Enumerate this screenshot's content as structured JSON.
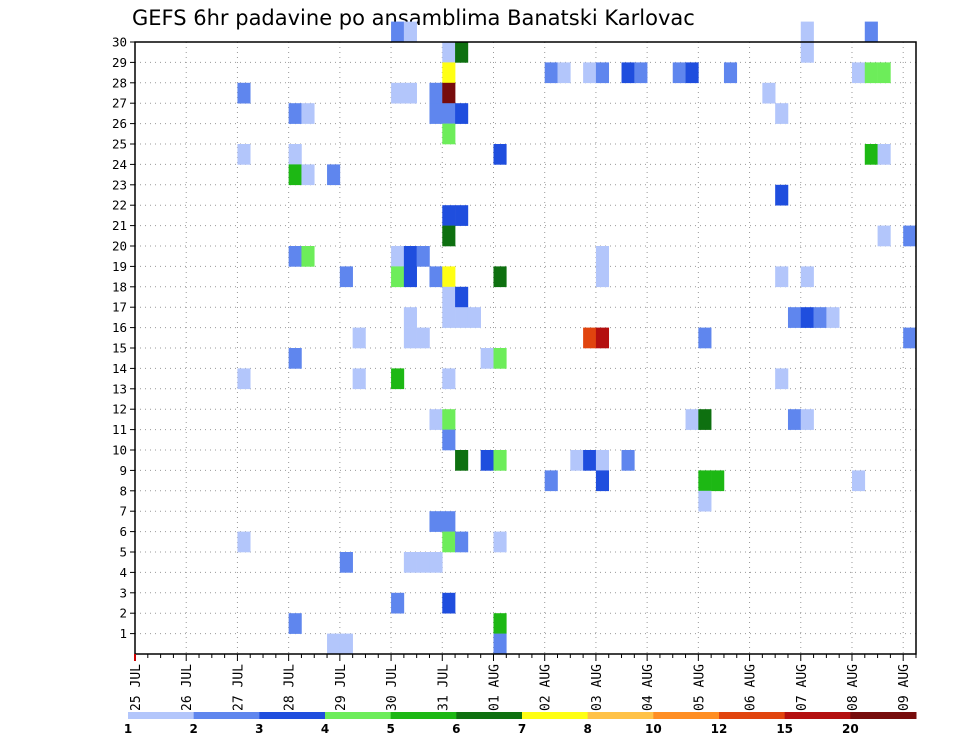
{
  "chart_data": {
    "type": "heatmap",
    "title": "GEFS 6hr padavine po ansamblima Banatski Karlovac",
    "x_tick_labels": [
      "25 JUL",
      "26 JUL",
      "27 JUL",
      "28 JUL",
      "29 JUL",
      "30 JUL",
      "31 JUL",
      "01 AUG",
      "02 AUG",
      "03 AUG",
      "04 AUG",
      "05 AUG",
      "06 AUG",
      "07 AUG",
      "08 AUG",
      "09 AUG"
    ],
    "y_tick_labels": [
      "1",
      "2",
      "3",
      "4",
      "5",
      "6",
      "7",
      "8",
      "9",
      "10",
      "11",
      "12",
      "13",
      "14",
      "15",
      "16",
      "17",
      "18",
      "19",
      "20",
      "21",
      "22",
      "23",
      "24",
      "25",
      "26",
      "27",
      "28",
      "29",
      "30"
    ],
    "x_range_steps": [
      0,
      61
    ],
    "y_range": [
      0,
      30
    ],
    "grid": true,
    "legend_position": "bottom",
    "legend": {
      "labels": [
        "1",
        "2",
        "3",
        "4",
        "5",
        "6",
        "7",
        "8",
        "10",
        "12",
        "15",
        "20"
      ],
      "colors": [
        "#b3c6fb",
        "#5f86ee",
        "#1f4ede",
        "#6ded5a",
        "#1db814",
        "#0e7010",
        "#ffff14",
        "#ffc248",
        "#ff8e23",
        "#e1440e",
        "#b40f0f",
        "#770c0c"
      ]
    },
    "cell_units": "member, 6-hour step index from 25 JUL 00Z, precipitation class (1-12)",
    "cells": [
      [
        30,
        20,
        2
      ],
      [
        30,
        21,
        1
      ],
      [
        30,
        52,
        1
      ],
      [
        30,
        57,
        2
      ],
      [
        29,
        24,
        1
      ],
      [
        29,
        25,
        6
      ],
      [
        29,
        52,
        1
      ],
      [
        28,
        24,
        7
      ],
      [
        28,
        32,
        2
      ],
      [
        28,
        33,
        1
      ],
      [
        28,
        35,
        1
      ],
      [
        28,
        36,
        2
      ],
      [
        28,
        38,
        3
      ],
      [
        28,
        39,
        2
      ],
      [
        28,
        42,
        2
      ],
      [
        28,
        43,
        3
      ],
      [
        28,
        46,
        2
      ],
      [
        28,
        56,
        1
      ],
      [
        28,
        57,
        4
      ],
      [
        28,
        58,
        4
      ],
      [
        27,
        8,
        2
      ],
      [
        27,
        20,
        1
      ],
      [
        27,
        21,
        1
      ],
      [
        27,
        23,
        2
      ],
      [
        27,
        24,
        12
      ],
      [
        27,
        49,
        1
      ],
      [
        26,
        12,
        2
      ],
      [
        26,
        13,
        1
      ],
      [
        26,
        23,
        2
      ],
      [
        26,
        24,
        2
      ],
      [
        26,
        25,
        3
      ],
      [
        26,
        50,
        1
      ],
      [
        25,
        24,
        4
      ],
      [
        24,
        8,
        1
      ],
      [
        24,
        12,
        1
      ],
      [
        24,
        28,
        3
      ],
      [
        24,
        57,
        5
      ],
      [
        24,
        58,
        1
      ],
      [
        23,
        12,
        5
      ],
      [
        23,
        13,
        1
      ],
      [
        23,
        15,
        2
      ],
      [
        22,
        50,
        3
      ],
      [
        21,
        24,
        3
      ],
      [
        21,
        25,
        3
      ],
      [
        20,
        24,
        6
      ],
      [
        20,
        58,
        1
      ],
      [
        20,
        60,
        2
      ],
      [
        19,
        12,
        2
      ],
      [
        19,
        13,
        4
      ],
      [
        19,
        20,
        1
      ],
      [
        19,
        21,
        3
      ],
      [
        19,
        22,
        2
      ],
      [
        19,
        36,
        1
      ],
      [
        18,
        16,
        2
      ],
      [
        18,
        20,
        4
      ],
      [
        18,
        21,
        3
      ],
      [
        18,
        23,
        2
      ],
      [
        18,
        24,
        7
      ],
      [
        18,
        28,
        6
      ],
      [
        18,
        36,
        1
      ],
      [
        18,
        50,
        1
      ],
      [
        18,
        52,
        1
      ],
      [
        17,
        24,
        1
      ],
      [
        17,
        25,
        3
      ],
      [
        16,
        21,
        1
      ],
      [
        16,
        24,
        1
      ],
      [
        16,
        25,
        1
      ],
      [
        16,
        26,
        1
      ],
      [
        16,
        51,
        2
      ],
      [
        16,
        52,
        3
      ],
      [
        16,
        53,
        2
      ],
      [
        16,
        54,
        1
      ],
      [
        15,
        17,
        1
      ],
      [
        15,
        21,
        1
      ],
      [
        15,
        22,
        1
      ],
      [
        15,
        35,
        10
      ],
      [
        15,
        36,
        11
      ],
      [
        15,
        44,
        2
      ],
      [
        15,
        60,
        2
      ],
      [
        14,
        12,
        2
      ],
      [
        14,
        27,
        1
      ],
      [
        14,
        28,
        4
      ],
      [
        13,
        8,
        1
      ],
      [
        13,
        17,
        1
      ],
      [
        13,
        20,
        5
      ],
      [
        13,
        24,
        1
      ],
      [
        13,
        50,
        1
      ],
      [
        11,
        23,
        1
      ],
      [
        11,
        24,
        4
      ],
      [
        11,
        43,
        1
      ],
      [
        11,
        44,
        6
      ],
      [
        11,
        51,
        2
      ],
      [
        11,
        52,
        1
      ],
      [
        10,
        24,
        2
      ],
      [
        9,
        25,
        6
      ],
      [
        9,
        27,
        3
      ],
      [
        9,
        28,
        4
      ],
      [
        9,
        34,
        1
      ],
      [
        9,
        35,
        3
      ],
      [
        9,
        36,
        1
      ],
      [
        9,
        38,
        2
      ],
      [
        8,
        32,
        2
      ],
      [
        8,
        36,
        3
      ],
      [
        8,
        44,
        5
      ],
      [
        8,
        45,
        5
      ],
      [
        8,
        56,
        1
      ],
      [
        7,
        44,
        1
      ],
      [
        6,
        23,
        2
      ],
      [
        6,
        24,
        2
      ],
      [
        5,
        8,
        1
      ],
      [
        5,
        24,
        4
      ],
      [
        5,
        25,
        2
      ],
      [
        5,
        28,
        1
      ],
      [
        4,
        16,
        2
      ],
      [
        4,
        21,
        1
      ],
      [
        4,
        22,
        1
      ],
      [
        4,
        23,
        1
      ],
      [
        2,
        20,
        2
      ],
      [
        2,
        24,
        3
      ],
      [
        1,
        12,
        2
      ],
      [
        1,
        28,
        5
      ],
      [
        0,
        15,
        1
      ],
      [
        0,
        16,
        1
      ],
      [
        0,
        28,
        2
      ]
    ]
  }
}
